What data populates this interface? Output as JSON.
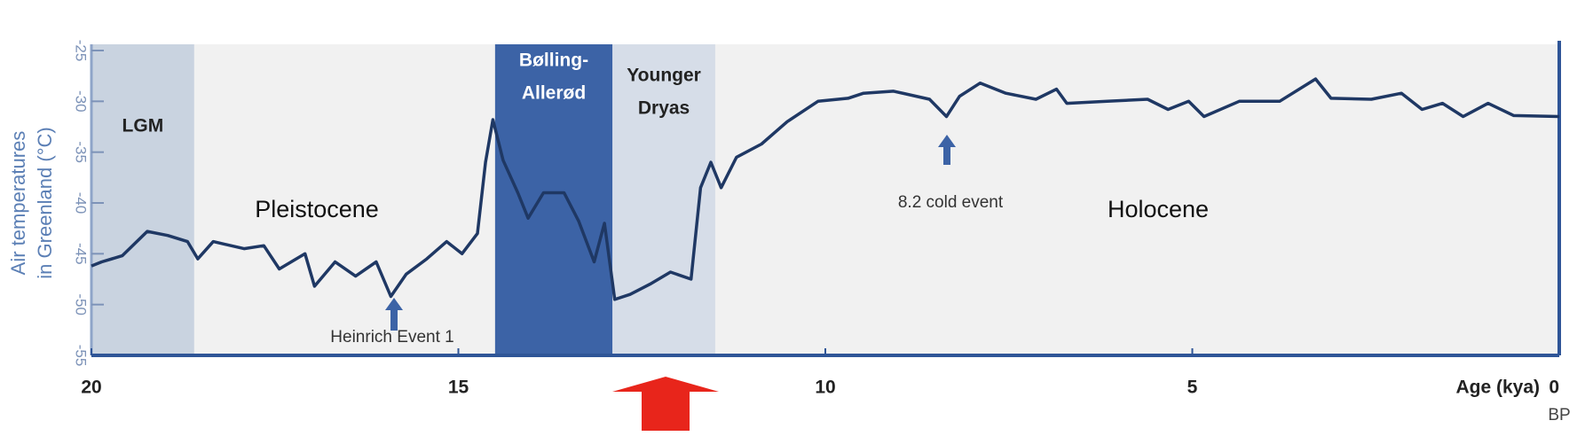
{
  "chart_data": {
    "type": "line",
    "y_label": [
      "Air temperatures",
      "in Greenland (°C)"
    ],
    "x_label": "Age (kya)",
    "x_unit": "BP",
    "xlim": [
      20,
      0
    ],
    "xticks": [
      20,
      15,
      10,
      5,
      0
    ],
    "ylim": [
      -25,
      -55
    ],
    "yticks": [
      -25,
      -30,
      -35,
      -40,
      -45,
      -50,
      -55
    ],
    "color": "#1f3864",
    "periods": [
      {
        "label": [
          "LGM"
        ],
        "start": 20,
        "end": 18.6,
        "color": "#c9d3e0"
      },
      {
        "label": [
          "Bølling-",
          "Allerød"
        ],
        "start": 14.5,
        "end": 12.9,
        "color": "#3c63a6"
      },
      {
        "label": [
          "Younger",
          "Dryas"
        ],
        "start": 12.9,
        "end": 11.5,
        "color": "#d6dde8"
      }
    ],
    "era_labels": [
      "Pleistocene",
      "Holocene"
    ],
    "annotations": [
      "Heinrich Event 1",
      "8.2 cold event"
    ],
    "x": [
      20,
      19.86,
      19.58,
      19.24,
      18.96,
      18.69,
      18.55,
      18.34,
      17.92,
      17.65,
      17.44,
      17.09,
      16.96,
      16.68,
      16.4,
      16.12,
      15.92,
      15.71,
      15.43,
      15.16,
      14.95,
      14.74,
      14.63,
      14.53,
      14.39,
      14.19,
      14.05,
      13.84,
      13.56,
      13.36,
      13.15,
      13.01,
      12.87,
      12.66,
      12.39,
      12.11,
      11.83,
      11.7,
      11.56,
      11.42,
      11.21,
      10.87,
      10.52,
      10.1,
      9.69,
      9.48,
      9.07,
      8.58,
      8.35,
      8.17,
      7.89,
      7.54,
      7.13,
      6.85,
      6.71,
      6.16,
      5.61,
      5.33,
      5.05,
      4.84,
      4.36,
      3.81,
      3.32,
      3.11,
      2.56,
      2.15,
      1.87,
      1.59,
      1.31,
      0.97,
      0.62,
      0
    ],
    "values": [
      -46.2,
      -45.8,
      -45.2,
      -42.8,
      -43.2,
      -43.8,
      -45.5,
      -43.8,
      -44.5,
      -44.2,
      -46.5,
      -45.0,
      -48.2,
      -45.8,
      -47.2,
      -45.8,
      -49.2,
      -47.0,
      -45.5,
      -43.8,
      -45.0,
      -43.0,
      -36.0,
      -31.8,
      -35.8,
      -39.0,
      -41.5,
      -39.0,
      -39.0,
      -41.8,
      -45.8,
      -42.0,
      -49.5,
      -49.0,
      -48.0,
      -46.8,
      -47.5,
      -38.5,
      -36.0,
      -38.5,
      -35.5,
      -34.2,
      -32.0,
      -30.0,
      -29.7,
      -29.2,
      -29.0,
      -29.8,
      -31.5,
      -29.5,
      -28.2,
      -29.2,
      -29.8,
      -28.8,
      -30.2,
      -30.0,
      -29.8,
      -30.8,
      -30.0,
      -31.5,
      -30.0,
      -30.0,
      -27.8,
      -29.7,
      -29.8,
      -29.2,
      -30.8,
      -30.2,
      -31.5,
      -30.2,
      -31.4,
      -31.5
    ]
  }
}
